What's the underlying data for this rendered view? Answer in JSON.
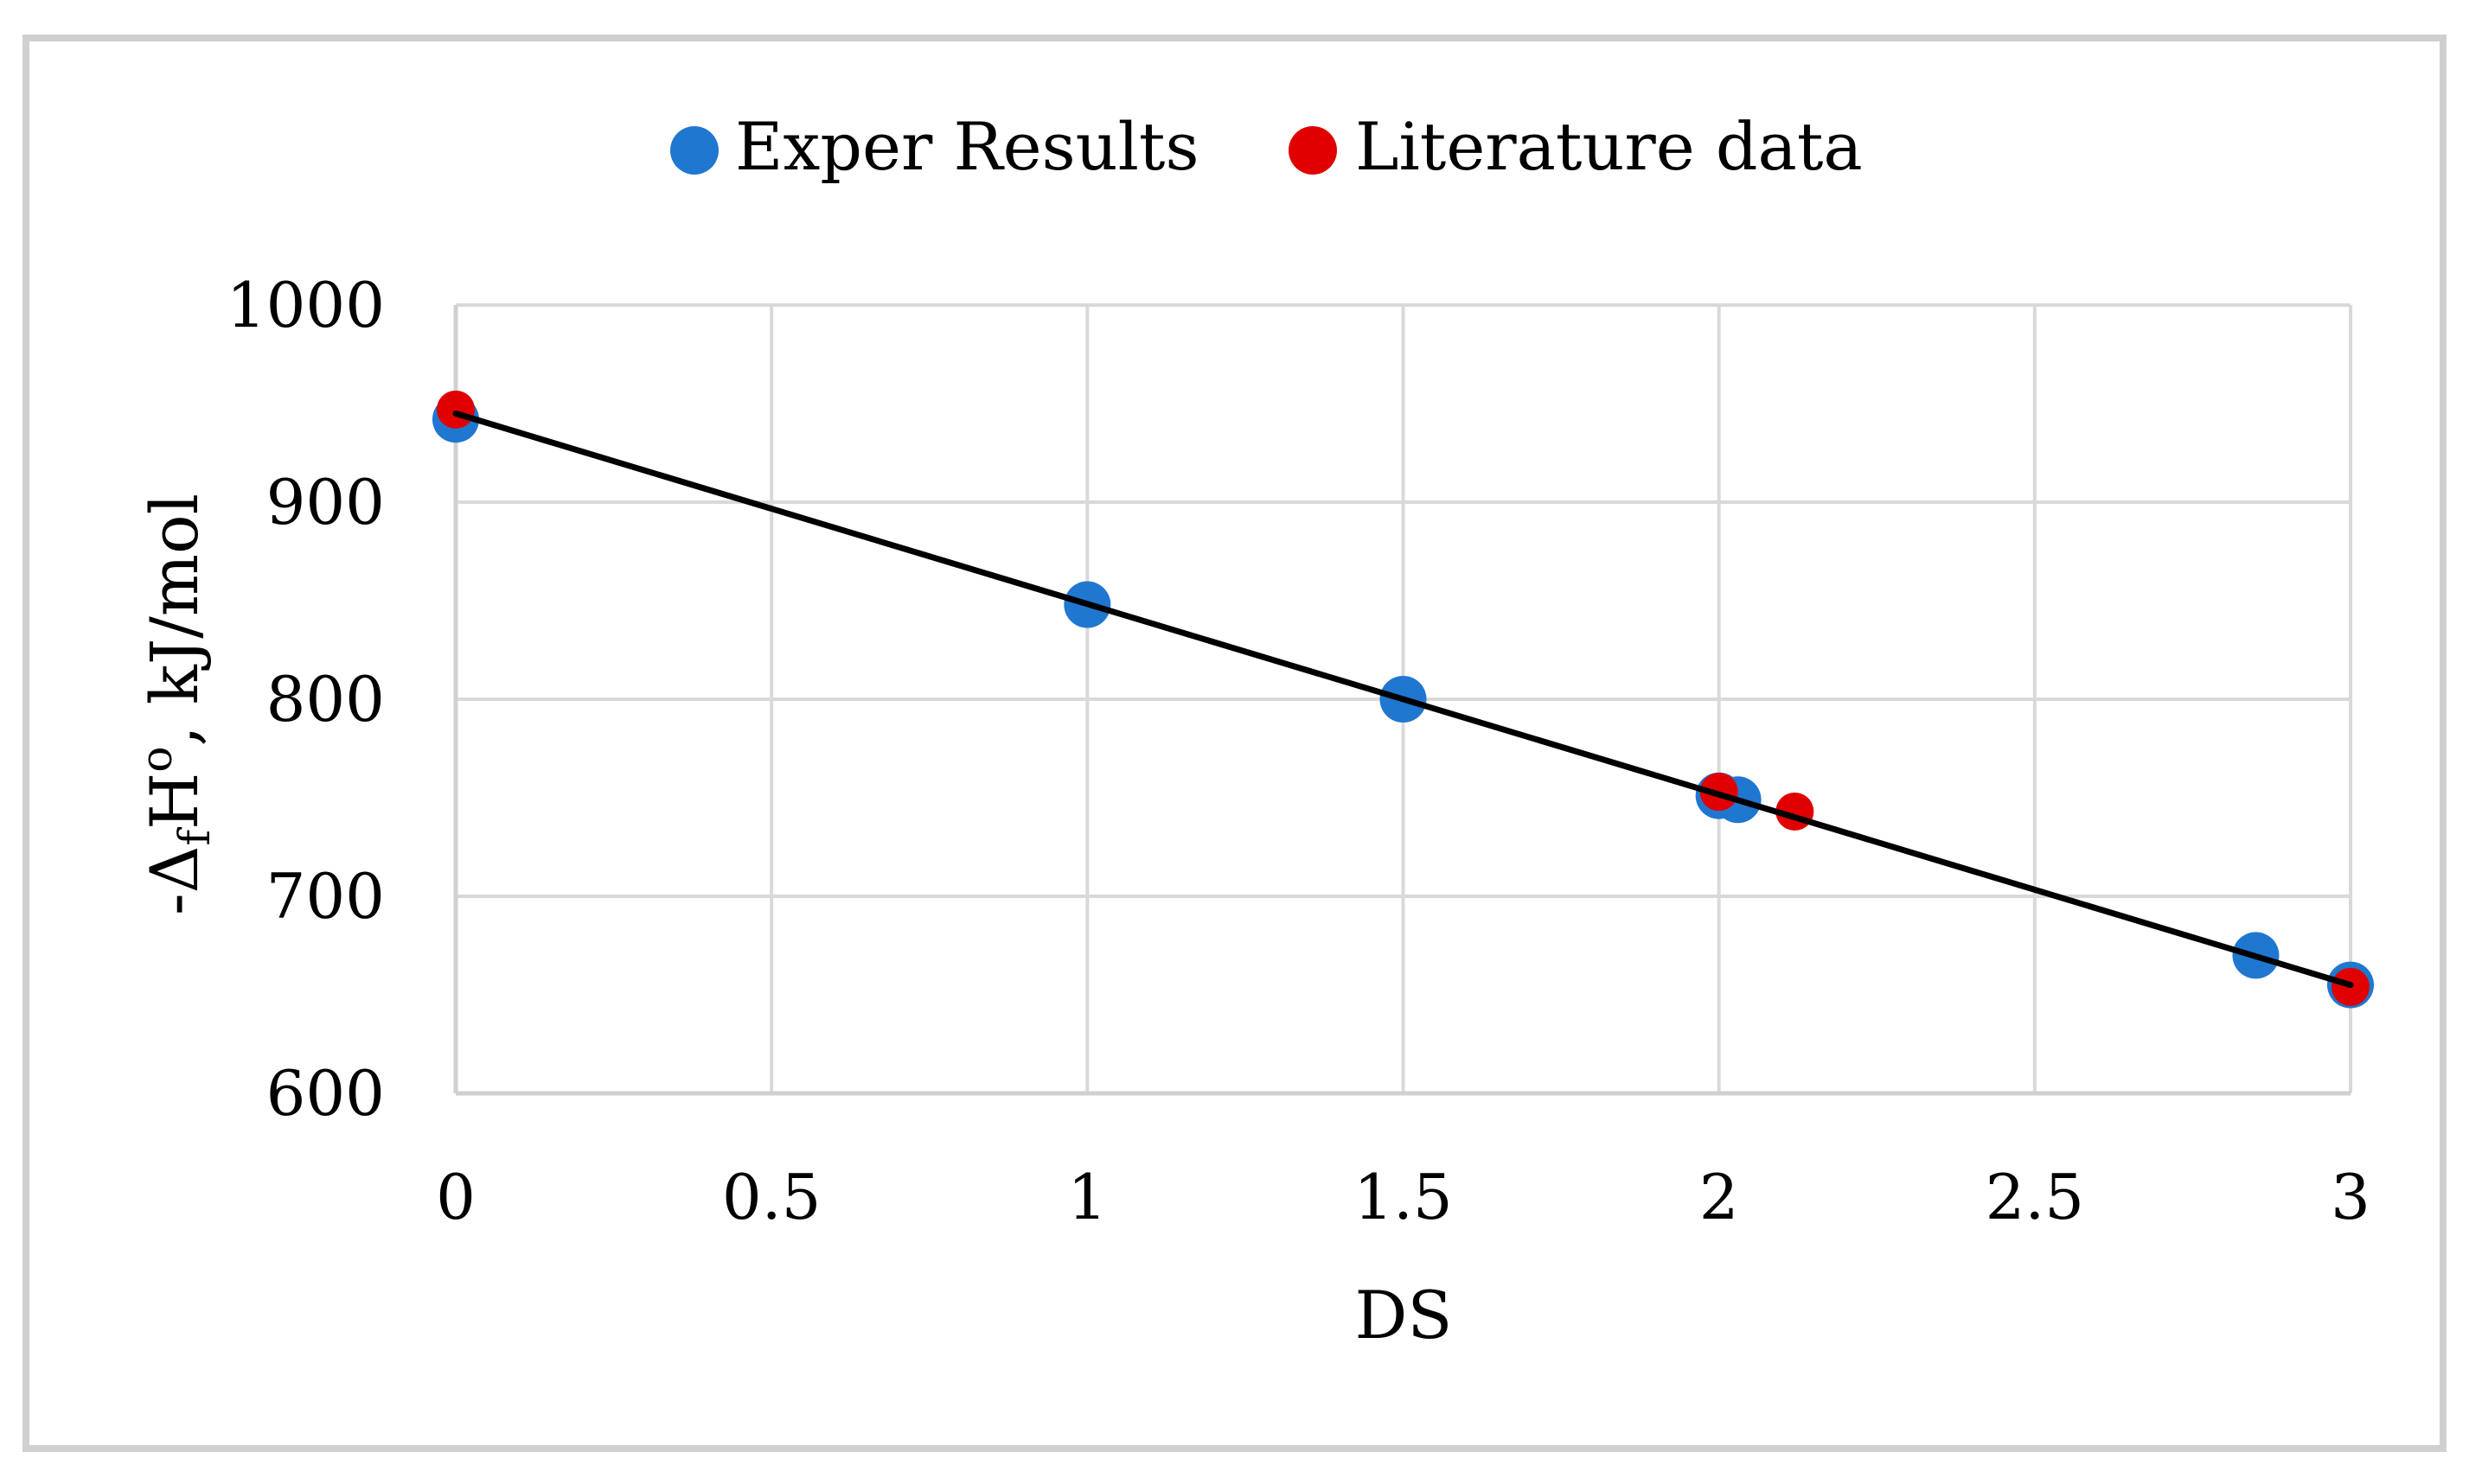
{
  "chart_data": {
    "type": "scatter",
    "title": "",
    "xlabel": "DS",
    "ylabel": "-ΔfH°, kJ/mol",
    "ylabel_parts": {
      "prefix": "-Δ",
      "subscript": "f",
      "main": "H",
      "superscript": "o",
      "suffix": ", kJ/mol"
    },
    "xlim": [
      0,
      3
    ],
    "ylim": [
      600,
      1000
    ],
    "xticks": [
      0,
      0.5,
      1,
      1.5,
      2,
      2.5,
      3
    ],
    "xtick_labels": [
      "0",
      "0.5",
      "1",
      "1.5",
      "2",
      "2.5",
      "3"
    ],
    "yticks": [
      600,
      700,
      800,
      900,
      1000
    ],
    "ytick_labels": [
      "600",
      "700",
      "800",
      "900",
      "1000"
    ],
    "grid": true,
    "legend_position": "top-center",
    "series": [
      {
        "name": "Exper Results",
        "color": "#1f77d0",
        "points": [
          {
            "x": 0,
            "y": 942
          },
          {
            "x": 1,
            "y": 848
          },
          {
            "x": 1.5,
            "y": 800
          },
          {
            "x": 2,
            "y": 751
          },
          {
            "x": 2.03,
            "y": 749
          },
          {
            "x": 2.85,
            "y": 670
          },
          {
            "x": 3,
            "y": 655
          }
        ]
      },
      {
        "name": "Literature data",
        "color": "#e00000",
        "points": [
          {
            "x": 0,
            "y": 947
          },
          {
            "x": 2,
            "y": 753
          },
          {
            "x": 2.12,
            "y": 743
          },
          {
            "x": 3,
            "y": 654
          }
        ]
      }
    ],
    "trendline": {
      "color": "#000000",
      "points": [
        {
          "x": 0,
          "y": 945
        },
        {
          "x": 3,
          "y": 655
        }
      ]
    },
    "frame_color": "#d0d0d0",
    "grid_color": "#d9d9d9"
  }
}
